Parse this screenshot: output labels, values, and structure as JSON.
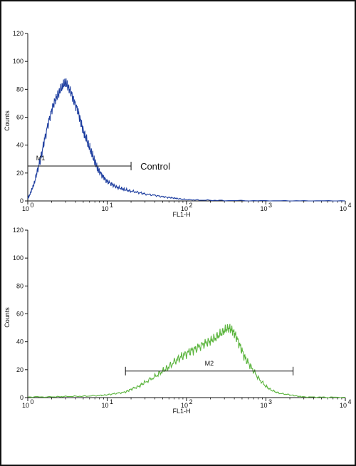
{
  "chart_data": [
    {
      "type": "histogram",
      "xlabel": "FL1-H",
      "ylabel": "Counts",
      "x_scale": "log",
      "xlim": [
        1,
        10000
      ],
      "ylim": [
        0,
        120
      ],
      "x_ticks": [
        {
          "base": "10",
          "exp": "0"
        },
        {
          "base": "10",
          "exp": "1"
        },
        {
          "base": "10",
          "exp": "2"
        },
        {
          "base": "10",
          "exp": "3"
        },
        {
          "base": "10",
          "exp": "4"
        }
      ],
      "y_ticks": [
        "0",
        "20",
        "40",
        "60",
        "80",
        "100",
        "120"
      ],
      "color": "#1f3fa0",
      "series": [
        {
          "name": "Control",
          "x": [
            1.0,
            1.05,
            1.12,
            1.2,
            1.3,
            1.45,
            1.6,
            1.8,
            2.0,
            2.2,
            2.4,
            2.6,
            2.8,
            3.0,
            3.2,
            3.5,
            3.8,
            4.2,
            4.6,
            5.0,
            5.5,
            6.0,
            6.5,
            7.0,
            7.5,
            8.0,
            9.0,
            10.0,
            11.5,
            13.0,
            15.0,
            17.0,
            20.0,
            25.0,
            30.0,
            40.0,
            50.0,
            60.0,
            70.0,
            80.0,
            100.0,
            150.0,
            300.0,
            1000.0,
            3000.0,
            10000.0
          ],
          "y": [
            2,
            4,
            8,
            12,
            20,
            30,
            42,
            55,
            65,
            72,
            76,
            80,
            83,
            85,
            82,
            78,
            72,
            66,
            58,
            50,
            44,
            38,
            33,
            28,
            24,
            21,
            17,
            14,
            12,
            10,
            9,
            8,
            7,
            6,
            5,
            4,
            3,
            2.5,
            2,
            1.5,
            1,
            0.6,
            0.3,
            0.1,
            0.05,
            0
          ]
        }
      ],
      "marker": {
        "label": "M1",
        "start": 1,
        "end": 20,
        "y": 25
      },
      "annotation": "Control"
    },
    {
      "type": "histogram",
      "xlabel": "FL1-H",
      "ylabel": "Counts",
      "x_scale": "log",
      "xlim": [
        1,
        10000
      ],
      "ylim": [
        0,
        120
      ],
      "x_ticks": [
        {
          "base": "10",
          "exp": "0"
        },
        {
          "base": "10",
          "exp": "1"
        },
        {
          "base": "10",
          "exp": "2"
        },
        {
          "base": "10",
          "exp": "3"
        },
        {
          "base": "10",
          "exp": "4"
        }
      ],
      "y_ticks": [
        "0",
        "20",
        "40",
        "60",
        "80",
        "100",
        "120"
      ],
      "color": "#5ab43c",
      "series": [
        {
          "x": [
            1.0,
            2.0,
            3.0,
            5.0,
            8.0,
            10.0,
            13.0,
            17.0,
            20.0,
            25.0,
            30.0,
            40.0,
            50.0,
            60.0,
            75.0,
            90.0,
            110.0,
            130.0,
            160.0,
            190.0,
            220.0,
            260.0,
            300.0,
            340.0,
            380.0,
            420.0,
            480.0,
            550.0,
            650.0,
            800.0,
            1000.0,
            1200.0,
            1500.0,
            2000.0,
            2500.0,
            3000.0,
            5000.0,
            10000.0
          ],
          "y": [
            0.5,
            0.5,
            0.8,
            1,
            1.5,
            2,
            3,
            4,
            6,
            8,
            11,
            15,
            19,
            22,
            27,
            30,
            33,
            35,
            38,
            40,
            42,
            45,
            48,
            50,
            48,
            44,
            36,
            28,
            22,
            14,
            8,
            5,
            3,
            2,
            1,
            0.5,
            0.3,
            0.2
          ]
        }
      ],
      "marker": {
        "label": "M2",
        "start": 17,
        "end": 2200,
        "y": 19
      }
    }
  ]
}
